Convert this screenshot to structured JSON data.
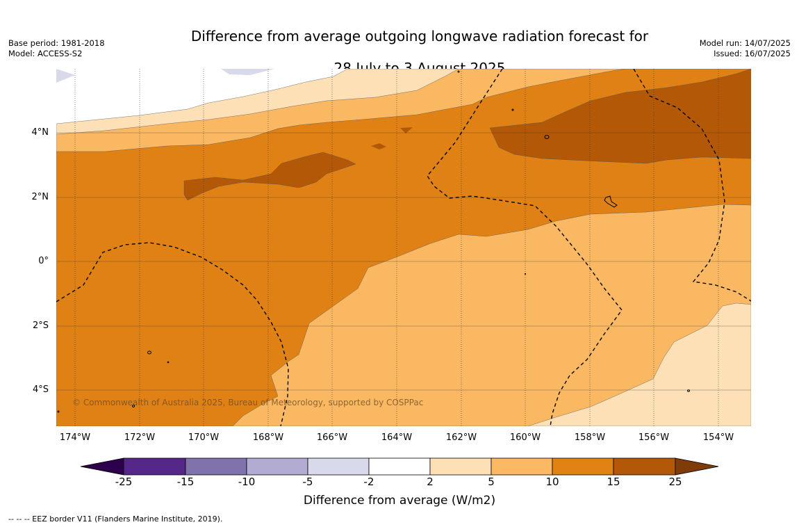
{
  "title_line1": "Difference from average outgoing longwave radiation forecast for",
  "title_line2": "28 July to 3 August 2025",
  "base_period": "Base period: 1981-2018",
  "model": "Model: ACCESS-S2",
  "model_run": "Model run: 14/07/2025",
  "issued": "Issued: 16/07/2025",
  "copyright": "© Commonwealth of Australia 2025, Bureau of Meteorology, supported by COSPPac",
  "footnote": "--  --  -- EEZ border V11 (Flanders Marine Institute, 2019).",
  "map": {
    "lat_labels": [
      "4°N",
      "2°N",
      "0°",
      "2°S",
      "4°S"
    ],
    "lon_labels": [
      "174°W",
      "172°W",
      "170°W",
      "168°W",
      "166°W",
      "164°W",
      "162°W",
      "160°W",
      "158°W",
      "156°W",
      "154°W"
    ],
    "fill_colors": {
      "light": "#fde0b6",
      "mid": "#fbb862",
      "orange": "#e08116",
      "dark": "#b35806",
      "lavender": "#d8daeb"
    }
  },
  "colorbar": {
    "title": "Difference from average (W/m2)",
    "tick_labels": [
      "-25",
      "-15",
      "-10",
      "-5",
      "-2",
      "2",
      "5",
      "10",
      "15",
      "25"
    ],
    "colors": [
      "#2d004b",
      "#542788",
      "#8073ac",
      "#b2abd2",
      "#d8daeb",
      "#ffffff",
      "#fee0b6",
      "#fdb863",
      "#e08214",
      "#b35806",
      "#7f3b08"
    ]
  }
}
